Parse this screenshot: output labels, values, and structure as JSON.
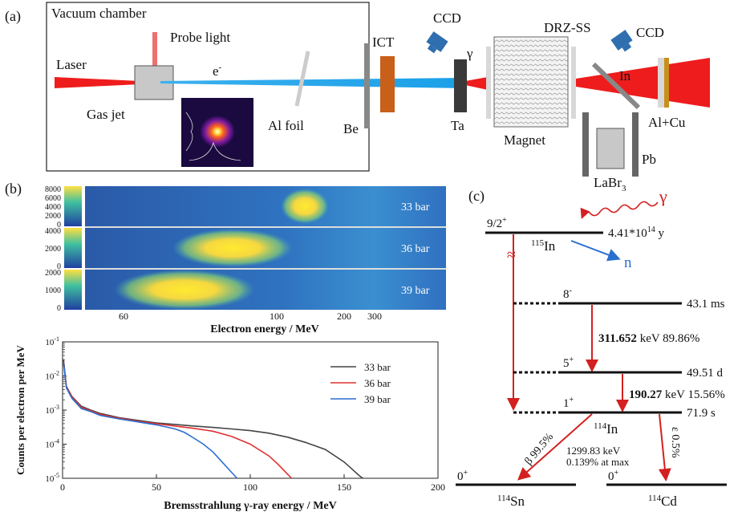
{
  "panel_labels": {
    "a": "(a)",
    "b": "(b)",
    "c": "(c)"
  },
  "setup": {
    "vacuum_chamber": "Vacuum chamber",
    "probe_light": "Probe light",
    "laser": "Laser",
    "gas_jet": "Gas jet",
    "electron": "e",
    "electron_sup": "-",
    "al_foil": "Al foil",
    "be": "Be",
    "ict": "ICT",
    "ccd_1": "CCD",
    "gamma": "γ",
    "ta": "Ta",
    "magnet": "Magnet",
    "drz_ss": "DRZ-SS",
    "ccd_2": "CCD",
    "in": "In",
    "al_cu": "Al+Cu",
    "pb": "Pb",
    "labr": "LaBr",
    "labr_sub": "3"
  },
  "spectra": {
    "rows": [
      {
        "label": "33 bar",
        "ticks": [
          "8000",
          "6000",
          "4000",
          "2000",
          "0"
        ]
      },
      {
        "label": "36 bar",
        "ticks": [
          "4000",
          "2000",
          "0"
        ]
      },
      {
        "label": "39 bar",
        "ticks": [
          "2000",
          "1000",
          "0"
        ]
      }
    ],
    "x_ticks": [
      "60",
      "100",
      "200",
      "300"
    ],
    "xlabel": "Electron energy / MeV"
  },
  "chart_data": {
    "type": "line",
    "xlabel": "Bremsstrahlung γ-ray energy / MeV",
    "ylabel": "Counts per electron per MeV",
    "xlim": [
      0,
      200
    ],
    "ylim": [
      1e-05,
      0.1
    ],
    "y_scale": "log",
    "x_ticks": [
      "0",
      "50",
      "100",
      "150",
      "200"
    ],
    "y_ticks": [
      {
        "base": "10",
        "exp": "-1"
      },
      {
        "base": "10",
        "exp": "-2"
      },
      {
        "base": "10",
        "exp": "-3"
      },
      {
        "base": "10",
        "exp": "-4"
      },
      {
        "base": "10",
        "exp": "-5"
      }
    ],
    "legend_position": "top-right",
    "series": [
      {
        "name": "33 bar",
        "color": "#444444",
        "x": [
          0.5,
          2,
          5,
          10,
          15,
          20,
          30,
          40,
          50,
          60,
          70,
          80,
          90,
          100,
          110,
          120,
          130,
          140,
          150,
          155,
          158,
          160
        ],
        "y": [
          0.03,
          0.005,
          0.0025,
          0.0013,
          0.001,
          0.0008,
          0.0006,
          0.0005,
          0.00042,
          0.00038,
          0.00034,
          0.00031,
          0.00028,
          0.00025,
          0.00021,
          0.00016,
          0.00011,
          7e-05,
          3e-05,
          1.7e-05,
          1.2e-05,
          1e-05
        ]
      },
      {
        "name": "36 bar",
        "color": "#e03030",
        "x": [
          0.5,
          2,
          5,
          10,
          15,
          20,
          30,
          40,
          50,
          60,
          70,
          80,
          90,
          100,
          110,
          115,
          120,
          122
        ],
        "y": [
          0.028,
          0.0048,
          0.0024,
          0.0012,
          0.00095,
          0.00075,
          0.00058,
          0.00047,
          0.0004,
          0.00034,
          0.00029,
          0.00024,
          0.00017,
          0.0001,
          4.5e-05,
          2.5e-05,
          1.3e-05,
          1e-05
        ]
      },
      {
        "name": "39 bar",
        "color": "#2a6fcf",
        "x": [
          0.5,
          2,
          5,
          10,
          15,
          20,
          30,
          40,
          50,
          60,
          65,
          70,
          75,
          80,
          85,
          90,
          93
        ],
        "y": [
          0.025,
          0.0045,
          0.0022,
          0.0011,
          0.0009,
          0.0007,
          0.00055,
          0.00045,
          0.00037,
          0.00028,
          0.00022,
          0.00015,
          0.0001,
          6e-05,
          3e-05,
          1.5e-05,
          1e-05
        ]
      }
    ]
  },
  "levels": {
    "gamma": "γ",
    "ground_spin": "9/2",
    "ground_spin_sup": "+",
    "in115_mass": "115",
    "in115_el": "In",
    "in115_half": "4.41*10",
    "in115_half_exp": "14",
    "in115_half_unit": " y",
    "neutron": "n",
    "approx": "≈",
    "l8_spin": "8",
    "l8_sup": "-",
    "l8_half": "43.1 ms",
    "t1_energy": "311.652",
    "t1_rest": " keV 89.86%",
    "l5_spin": "5",
    "l5_sup": "+",
    "l5_half": "49.51 d",
    "t2_energy": "190.27",
    "t2_rest": " keV 15.56%",
    "l1_spin": "1",
    "l1_sup": "+",
    "l1_half": "71.9 s",
    "in114_mass": "114",
    "in114_el": "In",
    "beta": "β",
    "beta_rest": " 99.5%",
    "beta_energy": "1299.83 keV",
    "beta_frac": "0.139% at max",
    "ec": "ε 0.5%",
    "sn_spin": "0",
    "sn_sup": "+",
    "sn_mass": "114",
    "sn_el": "Sn",
    "cd_spin": "0",
    "cd_sup": "+",
    "cd_mass": "114",
    "cd_el": "Cd"
  }
}
